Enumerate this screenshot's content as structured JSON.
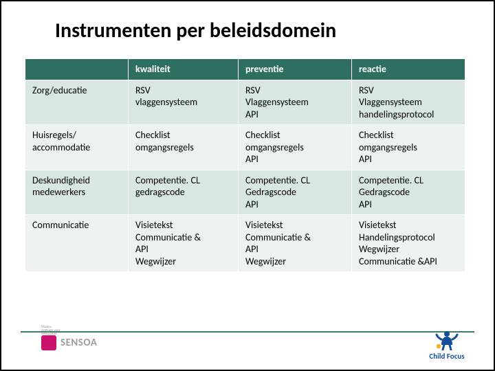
{
  "title": "Instrumenten per beleidsdomein",
  "table": {
    "header_bg": "#2f6f62",
    "row_bg_a": "#d9e7e3",
    "row_bg_b": "#ecf3f0",
    "text_color": "#000000",
    "columns": [
      "",
      "kwaliteit",
      "preventie",
      "reactie"
    ],
    "rows": [
      {
        "label": "Zorg/educatie",
        "cells": [
          [
            "RSV",
            "vlaggensysteem"
          ],
          [
            "RSV",
            "Vlaggensysteem",
            "API"
          ],
          [
            "RSV",
            "Vlaggensysteem",
            "handelingsprotocol"
          ]
        ]
      },
      {
        "label_lines": [
          "Huisregels/",
          "accommodatie"
        ],
        "cells": [
          [
            "Checklist",
            "omgangsregels"
          ],
          [
            "Checklist",
            "omgangsregels",
            "API"
          ],
          [
            "Checklist",
            "omgangsregels",
            "API"
          ]
        ]
      },
      {
        "label_lines": [
          "Deskundigheid",
          "medewerkers"
        ],
        "cells": [
          [
            "Competentie. CL",
            "gedragscode"
          ],
          [
            "Competentie. CL",
            "Gedragscode",
            "API"
          ],
          [
            "Competentie. CL",
            "Gedragscode",
            "API"
          ]
        ]
      },
      {
        "label": "Communicatie",
        "cells": [
          [
            "Visietekst",
            "Communicatie &",
            "API",
            "Wegwijzer"
          ],
          [
            "Visietekst",
            "Communicatie &",
            "API",
            "Wegwijzer"
          ],
          [
            "Visietekst",
            "Handelingsprotocol",
            "Wegwijzer",
            "Communicatie &API"
          ]
        ]
      }
    ]
  },
  "footer": {
    "vlaams_lines": [
      "Vlaams",
      "centrum voor",
      "seksualiteit"
    ],
    "sensoa": "SENSOA",
    "childfocus": "Child Focus",
    "cf_colors": {
      "body": "#144f9a",
      "accent": "#f3b21b"
    }
  }
}
